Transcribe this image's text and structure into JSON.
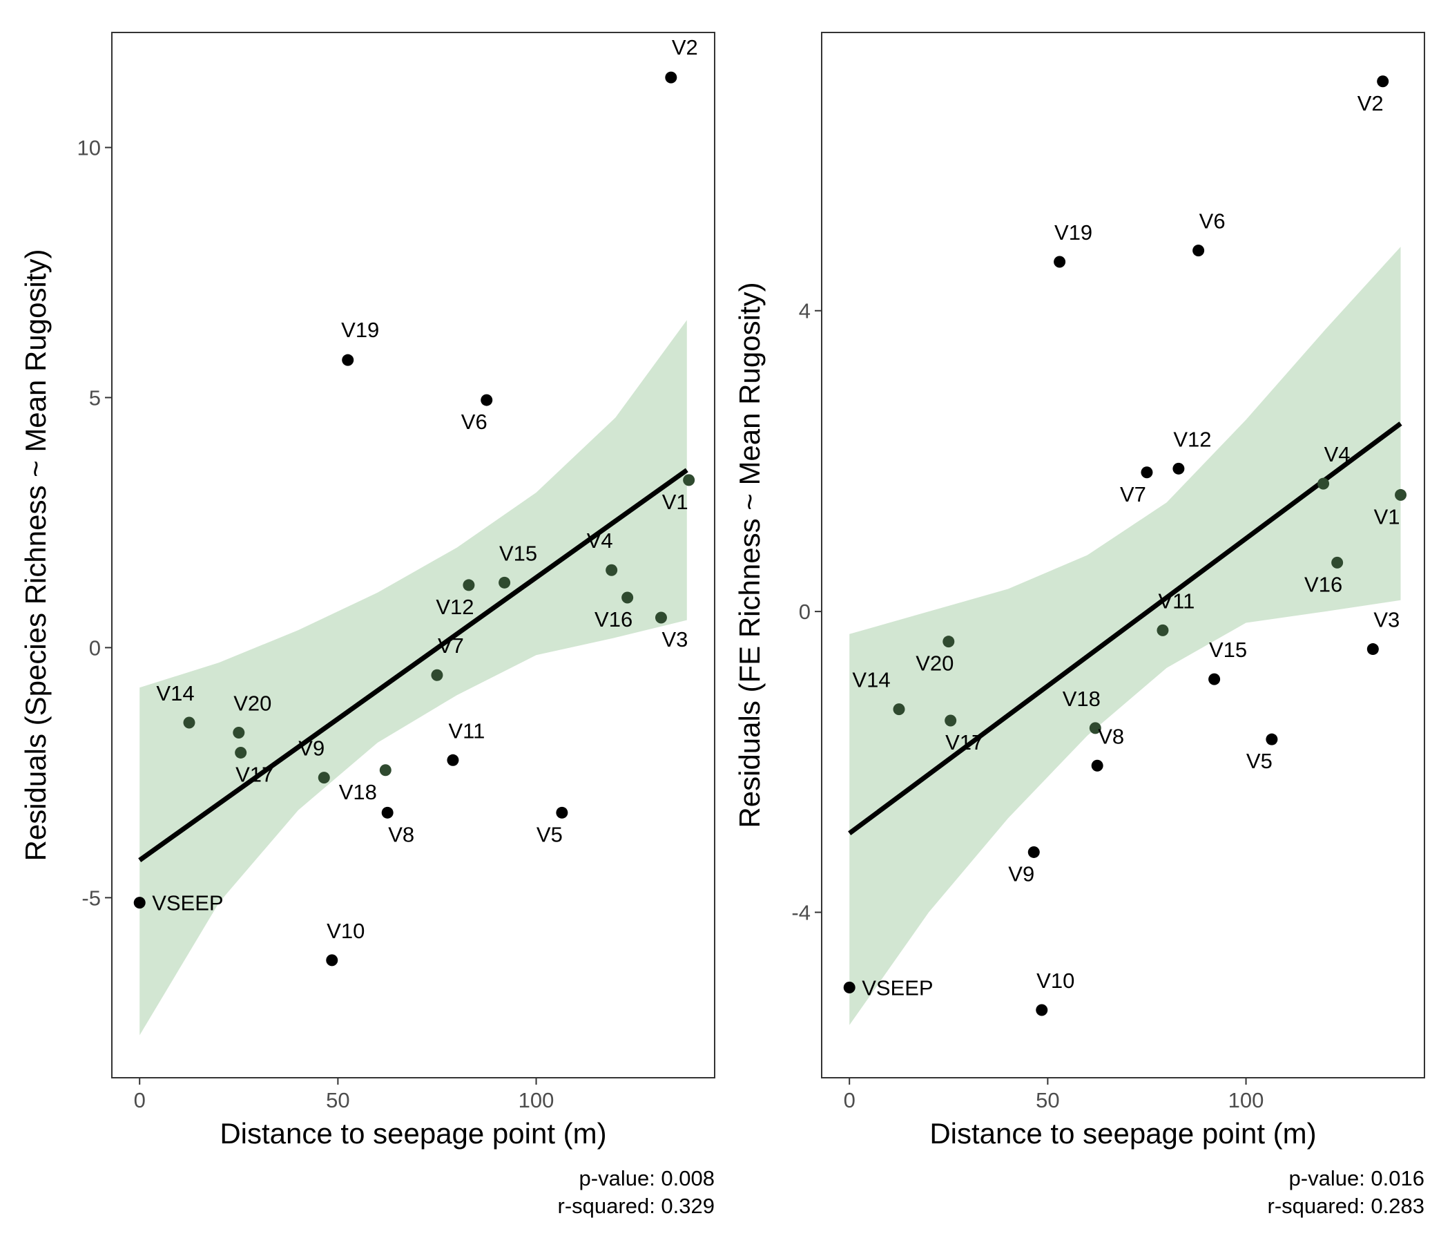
{
  "chart_data": [
    {
      "type": "scatter",
      "title": "",
      "xlabel": "Distance to seepage point (m)",
      "ylabel": "Residuals (Species Richness ~ Mean Rugosity)",
      "xlim": [
        -7,
        145
      ],
      "ylim": [
        -8.6,
        12.3
      ],
      "xticks": [
        0,
        50,
        100
      ],
      "yticks": [
        -5,
        0,
        5,
        10
      ],
      "ytick_labels": [
        "-5",
        "0",
        "5",
        "10"
      ],
      "grid": false,
      "fit_line": {
        "x": [
          0,
          138
        ],
        "y": [
          -4.25,
          3.55
        ]
      },
      "confidence_band": {
        "x": [
          0,
          20,
          40,
          60,
          80,
          100,
          120,
          138
        ],
        "lower": [
          -7.75,
          -5.1,
          -3.25,
          -1.9,
          -0.95,
          -0.15,
          0.2,
          0.55
        ],
        "upper": [
          -0.8,
          -0.3,
          0.35,
          1.1,
          2.0,
          3.1,
          4.6,
          6.55
        ]
      },
      "points": [
        {
          "label": "V2",
          "x": 134,
          "y": 11.4,
          "inband": false
        },
        {
          "label": "V19",
          "x": 52.5,
          "y": 5.75,
          "inband": false
        },
        {
          "label": "V6",
          "x": 87.5,
          "y": 4.95,
          "inband": false
        },
        {
          "label": "V1",
          "x": 138.5,
          "y": 3.35,
          "inband": true
        },
        {
          "label": "V15",
          "x": 92,
          "y": 1.3,
          "inband": true
        },
        {
          "label": "V12",
          "x": 83,
          "y": 1.25,
          "inband": true
        },
        {
          "label": "V4",
          "x": 119,
          "y": 1.55,
          "inband": true
        },
        {
          "label": "V16",
          "x": 123,
          "y": 1.0,
          "inband": true
        },
        {
          "label": "V3",
          "x": 131.5,
          "y": 0.6,
          "inband": true
        },
        {
          "label": "V7",
          "x": 75,
          "y": -0.55,
          "inband": true
        },
        {
          "label": "V14",
          "x": 12.5,
          "y": -1.5,
          "inband": true
        },
        {
          "label": "V20",
          "x": 25,
          "y": -1.7,
          "inband": true
        },
        {
          "label": "V17",
          "x": 25.5,
          "y": -2.1,
          "inband": true
        },
        {
          "label": "V9",
          "x": 46.5,
          "y": -2.6,
          "inband": true
        },
        {
          "label": "V18",
          "x": 62,
          "y": -2.45,
          "inband": true
        },
        {
          "label": "V11",
          "x": 79,
          "y": -2.25,
          "inband": false
        },
        {
          "label": "V8",
          "x": 62.5,
          "y": -3.3,
          "inband": false
        },
        {
          "label": "V5",
          "x": 106.5,
          "y": -3.3,
          "inband": false
        },
        {
          "label": "VSEEP",
          "x": 0,
          "y": -5.1,
          "inband": false
        },
        {
          "label": "V10",
          "x": 48.5,
          "y": -6.25,
          "inband": false
        }
      ],
      "annotations": [
        "p-value: 0.008",
        "r-squared: 0.329"
      ]
    },
    {
      "type": "scatter",
      "title": "",
      "xlabel": "Distance to seepage point (m)",
      "ylabel": "Residuals (FE Richness ~ Mean Rugosity)",
      "xlim": [
        -7,
        145
      ],
      "ylim": [
        -6.2,
        7.7
      ],
      "xticks": [
        0,
        50,
        100
      ],
      "yticks": [
        -4,
        0,
        4
      ],
      "ytick_labels": [
        "-4",
        "0",
        "4"
      ],
      "grid": false,
      "fit_line": {
        "x": [
          0,
          139
        ],
        "y": [
          -2.95,
          2.5
        ]
      },
      "confidence_band": {
        "x": [
          0,
          20,
          40,
          60,
          80,
          100,
          120,
          139
        ],
        "lower": [
          -5.5,
          -4.0,
          -2.75,
          -1.65,
          -0.75,
          -0.15,
          0.0,
          0.15
        ],
        "upper": [
          -0.3,
          0.0,
          0.3,
          0.75,
          1.45,
          2.55,
          3.75,
          4.85
        ]
      },
      "points": [
        {
          "label": "V2",
          "x": 134.5,
          "y": 7.05,
          "inband": false
        },
        {
          "label": "V19",
          "x": 53,
          "y": 4.65,
          "inband": false
        },
        {
          "label": "V6",
          "x": 88,
          "y": 4.8,
          "inband": false
        },
        {
          "label": "V12",
          "x": 83,
          "y": 1.9,
          "inband": false
        },
        {
          "label": "V7",
          "x": 75,
          "y": 1.85,
          "inband": false
        },
        {
          "label": "V4",
          "x": 119.5,
          "y": 1.7,
          "inband": true
        },
        {
          "label": "V1",
          "x": 139,
          "y": 1.55,
          "inband": true
        },
        {
          "label": "V16",
          "x": 123,
          "y": 0.65,
          "inband": true
        },
        {
          "label": "V11",
          "x": 79,
          "y": -0.25,
          "inband": true
        },
        {
          "label": "V20",
          "x": 25,
          "y": -0.4,
          "inband": true
        },
        {
          "label": "V3",
          "x": 132,
          "y": -0.5,
          "inband": false
        },
        {
          "label": "V15",
          "x": 92,
          "y": -0.9,
          "inband": false
        },
        {
          "label": "V14",
          "x": 12.5,
          "y": -1.3,
          "inband": true
        },
        {
          "label": "V17",
          "x": 25.5,
          "y": -1.45,
          "inband": true
        },
        {
          "label": "V18",
          "x": 62,
          "y": -1.55,
          "inband": true
        },
        {
          "label": "V5",
          "x": 106.5,
          "y": -1.7,
          "inband": false
        },
        {
          "label": "V8",
          "x": 62.5,
          "y": -2.05,
          "inband": false
        },
        {
          "label": "V9",
          "x": 46.5,
          "y": -3.2,
          "inband": false
        },
        {
          "label": "VSEEP",
          "x": 0,
          "y": -5.0,
          "inband": false
        },
        {
          "label": "V10",
          "x": 48.5,
          "y": -5.3,
          "inband": false
        }
      ],
      "annotations": [
        "p-value: 0.016",
        "r-squared: 0.283"
      ]
    }
  ],
  "colors": {
    "band": "#d2e6d2",
    "point_outside": "#000000",
    "point_inside": "#2f4a2f",
    "fit_line": "#000000",
    "panel_border": "#333333",
    "tick_text": "#4d4d4d"
  }
}
